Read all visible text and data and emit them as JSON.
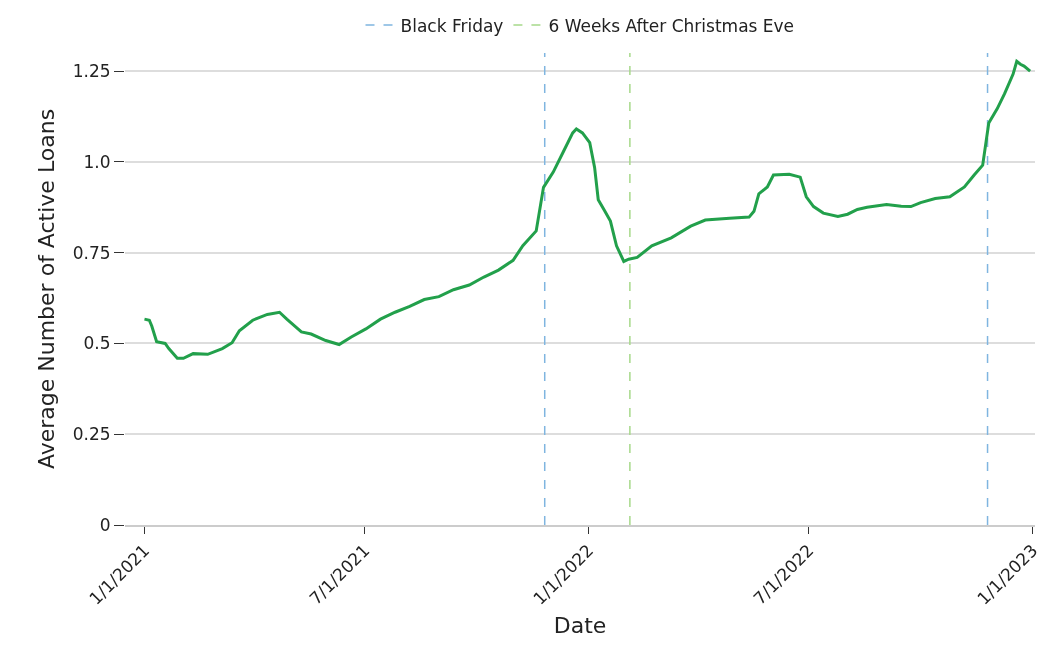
{
  "chart_data": {
    "type": "line",
    "xlabel": "Date",
    "ylabel": "Average Number of Active Loans",
    "x": [
      "2021-01-01",
      "2021-01-05",
      "2021-01-07",
      "2021-01-11",
      "2021-01-18",
      "2021-01-21",
      "2021-01-28",
      "2021-02-02",
      "2021-02-10",
      "2021-02-22",
      "2021-03-06",
      "2021-03-14",
      "2021-03-20",
      "2021-03-31",
      "2021-04-12",
      "2021-04-22",
      "2021-04-28",
      "2021-05-10",
      "2021-05-18",
      "2021-05-30",
      "2021-06-10",
      "2021-06-20",
      "2021-07-02",
      "2021-07-14",
      "2021-07-26",
      "2021-08-07",
      "2021-08-19",
      "2021-08-31",
      "2021-09-12",
      "2021-09-25",
      "2021-10-07",
      "2021-10-19",
      "2021-10-31",
      "2021-11-08",
      "2021-11-19",
      "2021-11-25",
      "2021-12-03",
      "2021-12-11",
      "2021-12-19",
      "2021-12-22",
      "2021-12-27",
      "2022-01-02",
      "2022-01-06",
      "2022-01-09",
      "2022-01-14",
      "2022-01-19",
      "2022-01-24",
      "2022-01-30",
      "2022-02-03",
      "2022-02-10",
      "2022-02-22",
      "2022-03-10",
      "2022-03-26",
      "2022-04-07",
      "2022-04-27",
      "2022-05-13",
      "2022-05-17",
      "2022-05-21",
      "2022-05-28",
      "2022-06-02",
      "2022-06-15",
      "2022-06-24",
      "2022-06-29",
      "2022-07-05",
      "2022-07-13",
      "2022-07-25",
      "2022-08-02",
      "2022-08-10",
      "2022-08-18",
      "2022-09-03",
      "2022-09-15",
      "2022-09-23",
      "2022-10-01",
      "2022-10-13",
      "2022-10-25",
      "2022-11-06",
      "2022-11-14",
      "2022-11-21",
      "2022-11-26",
      "2022-12-03",
      "2022-12-09",
      "2022-12-16",
      "2022-12-19",
      "2022-12-22",
      "2022-12-25",
      "2022-12-30"
    ],
    "series": [
      {
        "color": "#22a04b",
        "values": [
          0.567,
          0.564,
          0.548,
          0.505,
          0.5,
          0.486,
          0.459,
          0.459,
          0.472,
          0.47,
          0.486,
          0.502,
          0.535,
          0.564,
          0.58,
          0.586,
          0.567,
          0.532,
          0.526,
          0.508,
          0.497,
          0.518,
          0.54,
          0.567,
          0.586,
          0.602,
          0.621,
          0.629,
          0.648,
          0.661,
          0.683,
          0.702,
          0.729,
          0.769,
          0.81,
          0.93,
          0.972,
          1.026,
          1.08,
          1.091,
          1.08,
          1.053,
          0.985,
          0.896,
          0.867,
          0.837,
          0.769,
          0.726,
          0.732,
          0.737,
          0.769,
          0.791,
          0.823,
          0.84,
          0.845,
          0.848,
          0.864,
          0.912,
          0.931,
          0.964,
          0.966,
          0.958,
          0.904,
          0.877,
          0.859,
          0.85,
          0.856,
          0.869,
          0.875,
          0.883,
          0.878,
          0.877,
          0.888,
          0.899,
          0.904,
          0.931,
          0.964,
          0.991,
          1.107,
          1.147,
          1.188,
          1.242,
          1.277,
          1.269,
          1.264,
          1.25
        ]
      }
    ],
    "xlim": [
      "2020-12-16",
      "2023-01-03"
    ],
    "xticks": [
      {
        "value": "2021-01-01",
        "label": "1/1/2021"
      },
      {
        "value": "2021-07-01",
        "label": "7/1/2021"
      },
      {
        "value": "2022-01-01",
        "label": "1/1/2022"
      },
      {
        "value": "2022-07-01",
        "label": "7/1/2022"
      },
      {
        "value": "2023-01-01",
        "label": "1/1/2023"
      }
    ],
    "ylim": [
      0,
      1.3
    ],
    "yticks": [
      0,
      0.25,
      0.5,
      0.75,
      {
        "value": 1,
        "label": "1.0"
      },
      1.25
    ],
    "ref_lines": [
      {
        "axis": "x",
        "value": "2021-11-26",
        "label": "Black Friday",
        "color": "#7fb5e0",
        "line_style": "dashed"
      },
      {
        "axis": "x",
        "value": "2022-02-04",
        "label": "6 Weeks After Christmas Eve",
        "color": "#a6d98a",
        "line_style": "dashed"
      },
      {
        "axis": "x",
        "value": "2022-11-25",
        "color": "#7fb5e0",
        "line_style": "dashed"
      }
    ],
    "grid": "y",
    "legend": "top",
    "marker": "none",
    "line_style": "solid"
  }
}
